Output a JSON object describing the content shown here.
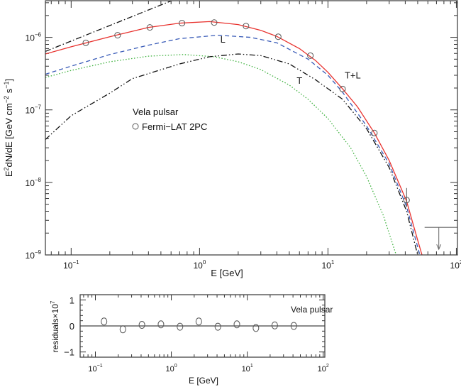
{
  "chart_data": [
    {
      "type": "line",
      "xscale": "log",
      "yscale": "log",
      "xlabel": "E [GeV]",
      "ylabel": "E2dN/dE [GeV cm-2 s-1]",
      "ylabel_parts": {
        "a": "E",
        "sup1": "2",
        "b": "dN/dE [GeV cm",
        "sup2": "−2",
        "c": " s",
        "sup3": "−1",
        "d": "]"
      },
      "xlim": [
        0.063,
        102
      ],
      "ylim": [
        1e-09,
        3.2e-06
      ],
      "xticks": [
        {
          "v": 0.1,
          "base": "10",
          "exp": "−1"
        },
        {
          "v": 1,
          "base": "10",
          "exp": "0"
        },
        {
          "v": 10,
          "base": "10",
          "exp": "1"
        },
        {
          "v": 100,
          "base": "10",
          "exp": "2"
        }
      ],
      "yticks": [
        {
          "v": 1e-09,
          "base": "10",
          "exp": "−9"
        },
        {
          "v": 1e-08,
          "base": "10",
          "exp": "−8"
        },
        {
          "v": 1e-07,
          "base": "10",
          "exp": "−7"
        },
        {
          "v": 1e-06,
          "base": "10",
          "exp": "−6"
        }
      ],
      "legend": {
        "title": "Vela pulsar",
        "entry": "Fermi−LAT 2PC",
        "placement": "center-left"
      },
      "annotations": [
        {
          "text": "L",
          "x": 1.45,
          "y": 8.5e-07
        },
        {
          "text": "T",
          "x": 5.7,
          "y": 2.3e-07
        },
        {
          "text": "T+L",
          "x": 13.5,
          "y": 2.7e-07
        }
      ],
      "series": [
        {
          "name": "T+L total",
          "color": "#e8322e",
          "dash": "",
          "points": [
            [
              0.063,
              5.9e-07
            ],
            [
              0.1,
              7.4e-07
            ],
            [
              0.2,
              1.02e-06
            ],
            [
              0.4,
              1.37e-06
            ],
            [
              0.7,
              1.57e-06
            ],
            [
              1.2,
              1.65e-06
            ],
            [
              2,
              1.5e-06
            ],
            [
              3,
              1.25e-06
            ],
            [
              4,
              1.03e-06
            ],
            [
              6,
              7e-07
            ],
            [
              8,
              4.8e-07
            ],
            [
              10,
              3.3e-07
            ],
            [
              13,
              1.95e-07
            ],
            [
              17,
              1.1e-07
            ],
            [
              23,
              4.8e-08
            ],
            [
              30,
              2e-08
            ],
            [
              41,
              5.5e-09
            ],
            [
              50,
              1.6e-09
            ],
            [
              54,
              1e-09
            ]
          ]
        },
        {
          "name": "L",
          "color": "#3a5cb8",
          "dash": "6,4",
          "points": [
            [
              0.063,
              3.1e-07
            ],
            [
              0.1,
              4e-07
            ],
            [
              0.2,
              5.8e-07
            ],
            [
              0.4,
              7.8e-07
            ],
            [
              0.7,
              9.6e-07
            ],
            [
              1.4,
              1.07e-06
            ],
            [
              2.5,
              1e-06
            ],
            [
              4,
              8.4e-07
            ],
            [
              7,
              5e-07
            ],
            [
              10,
              3e-07
            ],
            [
              13,
              1.75e-07
            ],
            [
              20,
              6e-08
            ],
            [
              30,
              1.8e-08
            ],
            [
              41,
              4.6e-09
            ],
            [
              52,
              1e-09
            ]
          ]
        },
        {
          "name": "T",
          "color": "#3fb23f",
          "dash": "1.5,2.5",
          "points": [
            [
              0.063,
              2.8e-07
            ],
            [
              0.1,
              3.5e-07
            ],
            [
              0.2,
              4.6e-07
            ],
            [
              0.4,
              5.5e-07
            ],
            [
              0.75,
              5.8e-07
            ],
            [
              1.3,
              5.4e-07
            ],
            [
              2,
              4.6e-07
            ],
            [
              3,
              3.6e-07
            ],
            [
              5,
              2.2e-07
            ],
            [
              7,
              1.4e-07
            ],
            [
              10,
              7.6e-08
            ],
            [
              15,
              3e-08
            ],
            [
              20,
              1.2e-08
            ],
            [
              27,
              3.5e-09
            ],
            [
              34,
              1e-09
            ]
          ]
        },
        {
          "name": "component dash-dot-dot",
          "color": "#111111",
          "dash": "8,3,1.5,3,1.5,3",
          "points": [
            [
              0.063,
              3.9e-08
            ],
            [
              0.1,
              8.3e-08
            ],
            [
              0.2,
              1.7e-07
            ],
            [
              0.3,
              2.7e-07
            ],
            [
              0.7,
              4.3e-07
            ],
            [
              1.2,
              5.4e-07
            ],
            [
              2,
              5.9e-07
            ],
            [
              3,
              5.6e-07
            ],
            [
              5,
              4.3e-07
            ],
            [
              8,
              2.6e-07
            ],
            [
              13,
              1.4e-07
            ],
            [
              20,
              5.5e-08
            ],
            [
              30,
              1.6e-08
            ],
            [
              41,
              4e-09
            ],
            [
              50,
              1e-09
            ]
          ]
        },
        {
          "name": "power-law dash-dot",
          "color": "#111111",
          "dash": "8,3,1.5,3",
          "points": [
            [
              0.063,
              6.4e-07
            ],
            [
              0.8,
              3.9e-06
            ]
          ]
        }
      ],
      "data_points": {
        "name": "Fermi-LAT 2PC",
        "color": "#555555",
        "x": [
          0.13,
          0.23,
          0.41,
          0.73,
          1.3,
          2.3,
          4.1,
          7.3,
          13,
          23,
          41
        ],
        "y": [
          8.4e-07,
          1.07e-06,
          1.37e-06,
          1.57e-06,
          1.6e-06,
          1.43e-06,
          1.02e-06,
          5.6e-07,
          1.94e-07,
          4.8e-08,
          5.7e-09
        ]
      },
      "upper_limit": {
        "x": 73,
        "y": 2.4e-09
      }
    },
    {
      "type": "scatter",
      "xscale": "log",
      "xlabel": "E [GeV]",
      "ylabel": "residuals×10",
      "ylabel_exp": "7",
      "label": "Vela pulsar",
      "xlim": [
        0.063,
        105
      ],
      "ylim": [
        -1.2,
        1.2
      ],
      "xticks": [
        {
          "v": 0.1,
          "base": "10",
          "exp": "−1"
        },
        {
          "v": 1,
          "base": "10",
          "exp": "0"
        },
        {
          "v": 10,
          "base": "10",
          "exp": "1"
        },
        {
          "v": 100,
          "base": "10",
          "exp": "2"
        }
      ],
      "yticks": [
        {
          "v": 1,
          "label": "1"
        },
        {
          "v": 0,
          "label": "0"
        },
        {
          "v": -1,
          "label": "−1"
        }
      ],
      "x": [
        0.13,
        0.23,
        0.41,
        0.73,
        1.3,
        2.3,
        4.1,
        7.3,
        13,
        23,
        41
      ],
      "y": [
        0.17,
        -0.13,
        0.04,
        0.06,
        -0.03,
        0.17,
        -0.03,
        0.06,
        -0.08,
        0.02,
        0.0
      ]
    }
  ]
}
